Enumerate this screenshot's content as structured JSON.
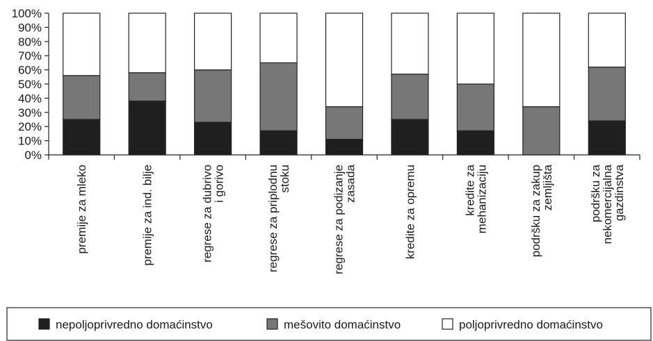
{
  "chart_data": {
    "type": "bar",
    "stacked": true,
    "percent": true,
    "categories": [
      [
        "premije za mleko"
      ],
      [
        "premije za ind. bilje"
      ],
      [
        "regrese za dubrivo",
        "i gorivo"
      ],
      [
        "regrese za priplodnu",
        "stoku"
      ],
      [
        "regrese za podizanje",
        "zasada"
      ],
      [
        "kredite za opremu"
      ],
      [
        "kredite za",
        "mehanizaciju"
      ],
      [
        "podršku za zakup",
        "zemljišta"
      ],
      [
        "podršku za",
        "nekomercijalna",
        "gazdinstva"
      ]
    ],
    "series": [
      {
        "name": "nepoljoprivredno domaćinstvo",
        "color": "#1f1f1f",
        "values": [
          25,
          38,
          23,
          17,
          11,
          25,
          17,
          0,
          24
        ]
      },
      {
        "name": "mešovito domaćinstvo",
        "color": "#777777",
        "values": [
          31,
          20,
          37,
          48,
          23,
          32,
          33,
          34,
          38
        ]
      },
      {
        "name": "poljoprivredno domaćinstvo",
        "color": "#ffffff",
        "values": [
          44,
          42,
          40,
          35,
          66,
          43,
          50,
          66,
          38
        ]
      }
    ],
    "yticks": [
      "0%",
      "10%",
      "20%",
      "30%",
      "40%",
      "50%",
      "60%",
      "70%",
      "80%",
      "90%",
      "100%"
    ],
    "ylim": [
      0,
      100
    ],
    "grid": false,
    "legend_position": "bottom"
  }
}
